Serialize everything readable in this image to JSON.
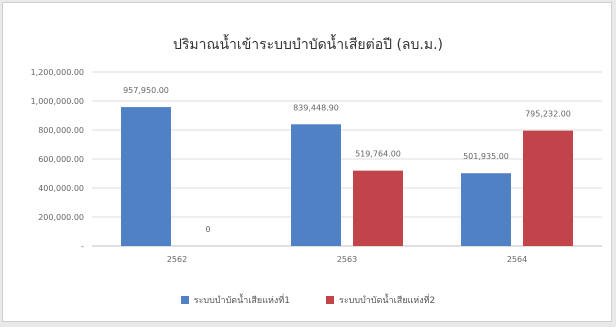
{
  "chart_data": {
    "type": "bar",
    "title": "ปริมาณน้ำเข้าระบบบำบัดน้ำเสียต่อปี (ลบ.ม.)",
    "categories": [
      "2562",
      "2563",
      "2564"
    ],
    "series": [
      {
        "name": "ระบบบำบัดน้ำเสียแห่งที่1",
        "values": [
          957950.0,
          839448.9,
          501935.0
        ],
        "labels": [
          "957,950.00",
          "839,448.90",
          "501,935.00"
        ],
        "color": "#4f81c4"
      },
      {
        "name": "ระบบบำบัดน้ำเสียแห่งที่2",
        "values": [
          0,
          519764.0,
          795232.0
        ],
        "labels": [
          "0",
          "519,764.00",
          "795,232.00"
        ],
        "color": "#c0444a"
      }
    ],
    "ylim": [
      0,
      1200000
    ],
    "y_ticks": [
      {
        "value": 1200000,
        "label": "1,200,000.00"
      },
      {
        "value": 1000000,
        "label": "1,000,000.00"
      },
      {
        "value": 800000,
        "label": "800,000.00"
      },
      {
        "value": 600000,
        "label": "600,000.00"
      },
      {
        "value": 400000,
        "label": "400,000.00"
      },
      {
        "value": 200000,
        "label": "200,000.00"
      },
      {
        "value": 0,
        "label": "-"
      }
    ],
    "xlabel": "",
    "ylabel": "",
    "grid": true,
    "legend_position": "bottom"
  }
}
